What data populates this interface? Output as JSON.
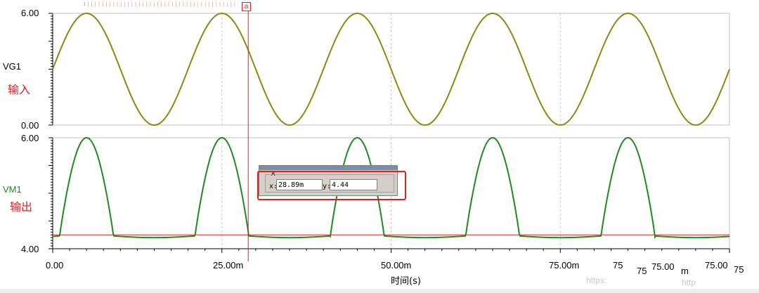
{
  "chart_data": [
    {
      "type": "line",
      "name": "VG1",
      "annotation": "输入",
      "color": "#8a8a10",
      "ylim": [
        0,
        6
      ],
      "yticks": [
        "6.00",
        "0.00"
      ],
      "xlim": [
        0,
        0.1
      ],
      "series": [
        {
          "name": "VG1",
          "kind": "sine",
          "amplitude": 3,
          "offset": 3,
          "period": 0.02,
          "phase_zero_crossing": 0
        }
      ]
    },
    {
      "type": "line",
      "name": "VM1",
      "annotation": "输出",
      "color": "#1f8a1f",
      "ylim": [
        4,
        6
      ],
      "yticks": [
        "6.00",
        "4.00"
      ],
      "xlim": [
        0,
        0.1
      ],
      "reference_level": 4.25,
      "series": [
        {
          "name": "VM1",
          "kind": "clipped-sine",
          "peak": 6.0,
          "baseline": 4.2,
          "period": 0.02,
          "first_peak": 0.005
        }
      ]
    }
  ],
  "xaxis": {
    "label": "时间(s)",
    "tick_labels": [
      "0.00",
      "25.00m",
      "50.00m",
      "75.00m"
    ],
    "tick_values": [
      0,
      0.025,
      0.05,
      0.075
    ]
  },
  "cursor": {
    "marker": "a",
    "x_value": 0.02889,
    "panel_label": "A",
    "x_label": "x:",
    "x_text": "28.89m",
    "y_label": "y:",
    "y_text": "4.44"
  },
  "ruler_text": "1|||||||||||||||||||||||||||||||||||||||||",
  "overlap_text": [
    "75",
    "75",
    "75.00",
    "m",
    "75.00",
    "75"
  ],
  "watermark": [
    "https:",
    "http"
  ],
  "colors": {
    "accent": "#e02020",
    "grid": "#c0c0c0"
  }
}
